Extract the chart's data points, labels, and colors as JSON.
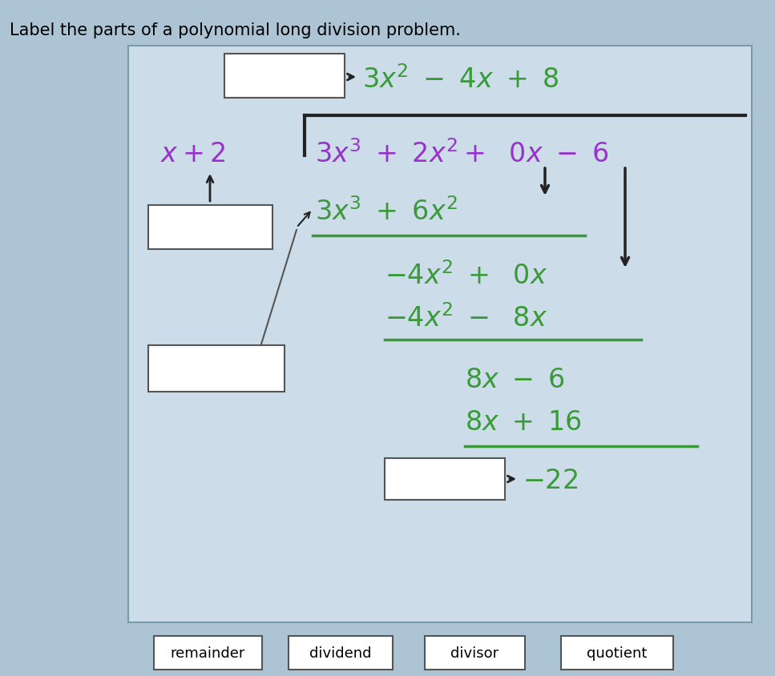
{
  "title": "Label the parts of a polynomial long division problem.",
  "bg_outer": "#adc4d4",
  "bg_inner": "#ccdce8",
  "bg_white": "#ffffff",
  "green": "#3a9a3a",
  "purple": "#9932CC",
  "dark": "#222222",
  "label_boxes": [
    "remainder",
    "dividend",
    "divisor",
    "quotient"
  ],
  "figsize": [
    9.67,
    8.45
  ],
  "dpi": 100
}
